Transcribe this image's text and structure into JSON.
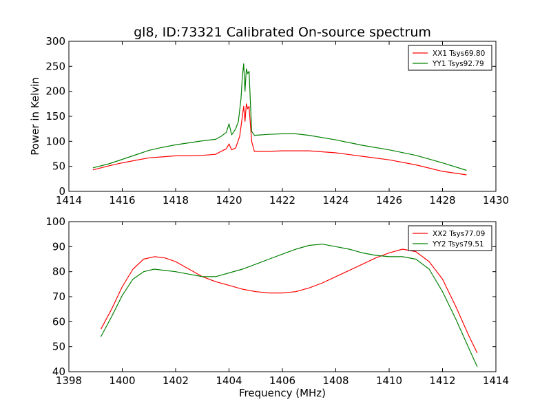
{
  "chart_data": [
    {
      "type": "line",
      "title": "gl8, ID:73321 Calibrated On-source spectrum",
      "xlabel": "",
      "ylabel": "Power in Kelvin",
      "xlim": [
        1414,
        1430
      ],
      "ylim": [
        0,
        300
      ],
      "xticks": [
        "1414",
        "1416",
        "1418",
        "1420",
        "1422",
        "1424",
        "1426",
        "1428",
        "1430"
      ],
      "yticks": [
        "0",
        "50",
        "100",
        "150",
        "200",
        "250",
        "300"
      ],
      "legend_position": "top-right",
      "grid": false,
      "series": [
        {
          "name": "XX1 Tsys69.80",
          "color": "#ff0000",
          "points": [
            [
              1414.9,
              43
            ],
            [
              1415.5,
              51
            ],
            [
              1416,
              57
            ],
            [
              1416.5,
              62
            ],
            [
              1417,
              67
            ],
            [
              1417.5,
              69
            ],
            [
              1418,
              71
            ],
            [
              1418.5,
              71
            ],
            [
              1419,
              72
            ],
            [
              1419.5,
              74
            ],
            [
              1419.7,
              80
            ],
            [
              1419.9,
              85
            ],
            [
              1420.0,
              95
            ],
            [
              1420.1,
              83
            ],
            [
              1420.25,
              87
            ],
            [
              1420.4,
              110
            ],
            [
              1420.5,
              150
            ],
            [
              1420.55,
              170
            ],
            [
              1420.6,
              140
            ],
            [
              1420.65,
              175
            ],
            [
              1420.7,
              165
            ],
            [
              1420.75,
              170
            ],
            [
              1420.85,
              100
            ],
            [
              1420.95,
              80
            ],
            [
              1421.5,
              80
            ],
            [
              1422,
              81
            ],
            [
              1423,
              81
            ],
            [
              1424,
              77
            ],
            [
              1425,
              70
            ],
            [
              1426,
              63
            ],
            [
              1427,
              53
            ],
            [
              1428,
              40
            ],
            [
              1428.9,
              33
            ]
          ]
        },
        {
          "name": "YY1 Tsys92.79",
          "color": "#008000",
          "points": [
            [
              1414.9,
              47
            ],
            [
              1415.5,
              55
            ],
            [
              1416,
              64
            ],
            [
              1416.5,
              73
            ],
            [
              1417,
              82
            ],
            [
              1417.5,
              88
            ],
            [
              1418,
              93
            ],
            [
              1418.5,
              97
            ],
            [
              1419,
              101
            ],
            [
              1419.5,
              104
            ],
            [
              1419.7,
              110
            ],
            [
              1419.9,
              118
            ],
            [
              1420.0,
              135
            ],
            [
              1420.1,
              113
            ],
            [
              1420.25,
              125
            ],
            [
              1420.35,
              140
            ],
            [
              1420.45,
              185
            ],
            [
              1420.5,
              230
            ],
            [
              1420.55,
              255
            ],
            [
              1420.6,
              200
            ],
            [
              1420.65,
              245
            ],
            [
              1420.7,
              235
            ],
            [
              1420.75,
              240
            ],
            [
              1420.85,
              120
            ],
            [
              1420.95,
              112
            ],
            [
              1421.5,
              114
            ],
            [
              1422,
              115
            ],
            [
              1422.5,
              115
            ],
            [
              1423,
              112
            ],
            [
              1424,
              103
            ],
            [
              1425,
              92
            ],
            [
              1426,
              83
            ],
            [
              1427,
              72
            ],
            [
              1428,
              57
            ],
            [
              1428.9,
              42
            ]
          ]
        }
      ]
    },
    {
      "type": "line",
      "title": "",
      "xlabel": "Frequency (MHz)",
      "ylabel": "",
      "xlim": [
        1398,
        1414
      ],
      "ylim": [
        40,
        100
      ],
      "xticks": [
        "1398",
        "1400",
        "1402",
        "1404",
        "1406",
        "1408",
        "1410",
        "1412",
        "1414"
      ],
      "yticks": [
        "40",
        "50",
        "60",
        "70",
        "80",
        "90",
        "100"
      ],
      "legend_position": "top-right",
      "grid": false,
      "series": [
        {
          "name": "XX2 Tsys77.09",
          "color": "#ff0000",
          "points": [
            [
              1399.2,
              57
            ],
            [
              1399.6,
              65
            ],
            [
              1400,
              74
            ],
            [
              1400.4,
              81
            ],
            [
              1400.8,
              85
            ],
            [
              1401.2,
              86
            ],
            [
              1401.6,
              85.5
            ],
            [
              1402,
              84
            ],
            [
              1402.5,
              81
            ],
            [
              1403,
              78
            ],
            [
              1403.5,
              76
            ],
            [
              1404,
              74.5
            ],
            [
              1404.5,
              73
            ],
            [
              1405,
              72
            ],
            [
              1405.5,
              71.5
            ],
            [
              1406,
              71.5
            ],
            [
              1406.5,
              72
            ],
            [
              1407,
              73.5
            ],
            [
              1407.5,
              75.5
            ],
            [
              1408,
              78
            ],
            [
              1408.5,
              80.5
            ],
            [
              1409,
              83
            ],
            [
              1409.5,
              85.5
            ],
            [
              1410,
              87.5
            ],
            [
              1410.5,
              89
            ],
            [
              1411,
              88
            ],
            [
              1411.5,
              84
            ],
            [
              1412,
              77
            ],
            [
              1412.5,
              66
            ],
            [
              1413,
              54
            ],
            [
              1413.3,
              47.5
            ]
          ]
        },
        {
          "name": "YY2 Tsys79.51",
          "color": "#008000",
          "points": [
            [
              1399.2,
              54
            ],
            [
              1399.6,
              62
            ],
            [
              1400,
              70.5
            ],
            [
              1400.4,
              77
            ],
            [
              1400.8,
              80
            ],
            [
              1401.2,
              81
            ],
            [
              1401.6,
              80.5
            ],
            [
              1402,
              80
            ],
            [
              1402.5,
              79
            ],
            [
              1403,
              78
            ],
            [
              1403.5,
              78
            ],
            [
              1404,
              79.5
            ],
            [
              1404.5,
              81
            ],
            [
              1405,
              83
            ],
            [
              1405.5,
              85
            ],
            [
              1406,
              87
            ],
            [
              1406.5,
              89
            ],
            [
              1407,
              90.5
            ],
            [
              1407.5,
              91
            ],
            [
              1408,
              90
            ],
            [
              1408.5,
              89
            ],
            [
              1409,
              87.5
            ],
            [
              1409.5,
              86.5
            ],
            [
              1410,
              86
            ],
            [
              1410.5,
              86
            ],
            [
              1411,
              85
            ],
            [
              1411.5,
              81
            ],
            [
              1412,
              72
            ],
            [
              1412.5,
              61
            ],
            [
              1413,
              49
            ],
            [
              1413.3,
              42
            ]
          ]
        }
      ]
    }
  ]
}
